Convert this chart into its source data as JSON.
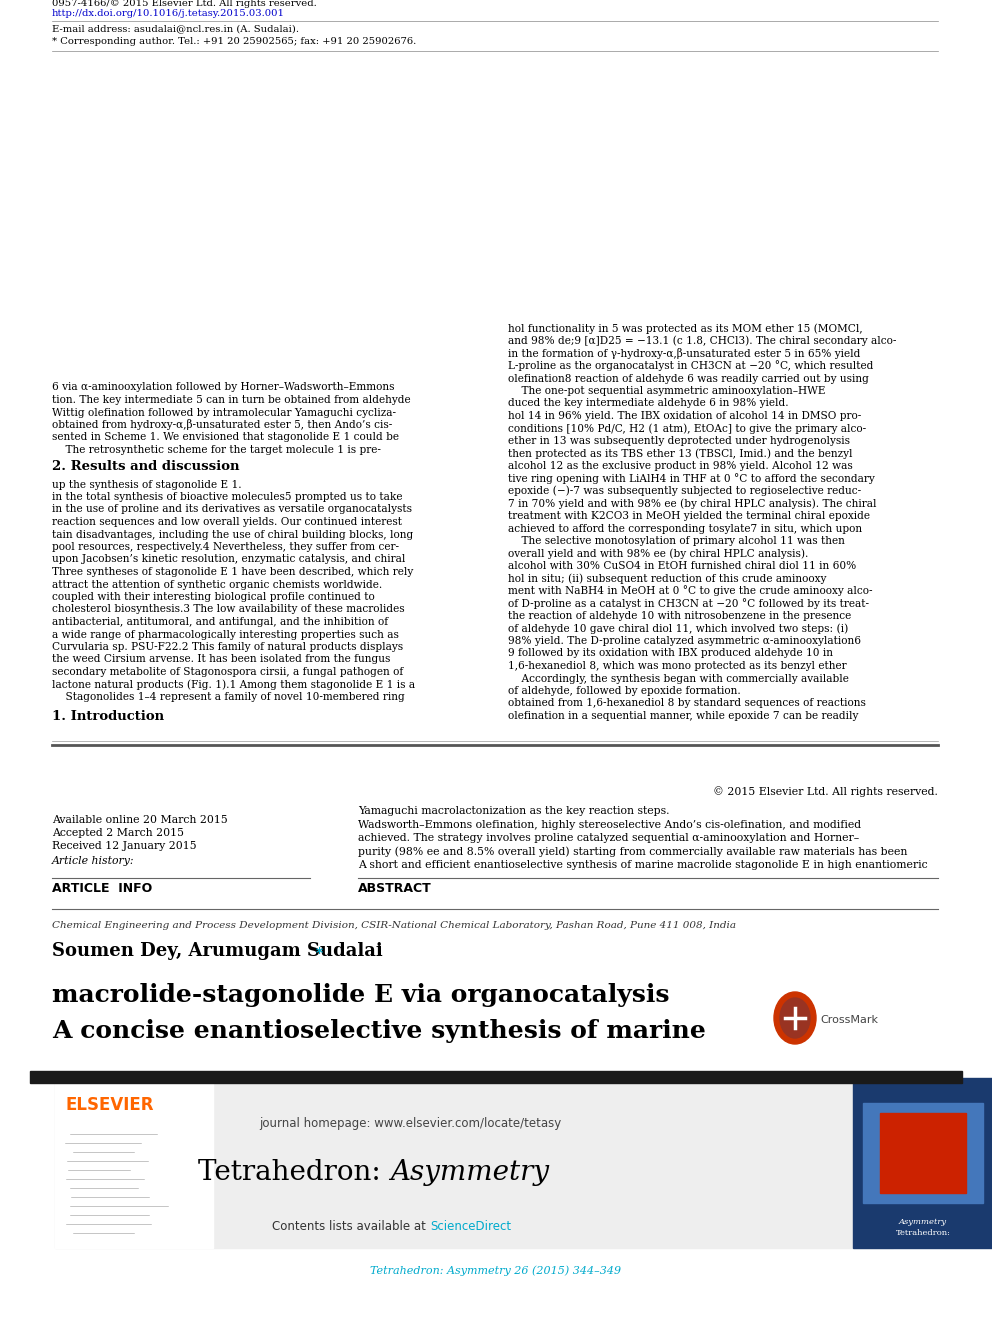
{
  "journal_ref": "Tetrahedron: Asymmetry 26 (2015) 344–349",
  "journal_ref_color": "#00AACC",
  "sciencedirect_color": "#00AACC",
  "journal_homepage": "journal homepage: www.elsevier.com/locate/tetasy",
  "elsevier_color": "#FF6600",
  "elsevier_text": "ELSEVIER",
  "black_bar_color": "#1a1a1a",
  "paper_title_line1": "A concise enantioselective synthesis of marine",
  "paper_title_line2": "macrolide-stagonolide E via organocatalysis",
  "affiliation": "Chemical Engineering and Process Development Division, CSIR-National Chemical Laboratory, Pashan Road, Pune 411 008, India",
  "article_info_header": "ARTICLE  INFO",
  "abstract_header": "ABSTRACT",
  "article_history_label": "Article history:",
  "received": "Received 12 January 2015",
  "accepted": "Accepted 2 March 2015",
  "available": "Available online 20 March 2015",
  "abstract_text": "A short and efficient enantioselective synthesis of marine macrolide stagonolide E in high enantiomeric\npurity (98% ee and 8.5% overall yield) starting from commercially available raw materials has been\nachieved. The strategy involves proline catalyzed sequential α-aminooxylation and Horner–\nWadsworth–Emmons olefination, highly stereoselective Ando’s cis-olefination, and modified\nYamaguchi macrolactonization as the key reaction steps.",
  "copyright_text": "© 2015 Elsevier Ltd. All rights reserved.",
  "section1_title": "1. Introduction",
  "section1_col1": "    Stagonolides 1–4 represent a family of novel 10-membered ring\nlactone natural products (Fig. 1).1 Among them stagonolide E 1 is a\nsecondary metabolite of Stagonospora cirsii, a fungal pathogen of\nthe weed Cirsium arvense. It has been isolated from the fungus\nCurvularia sp. PSU-F22.2 This family of natural products displays\na wide range of pharmacologically interesting properties such as\nantibacterial, antitumoral, and antifungal, and the inhibition of\ncholesterol biosynthesis.3 The low availability of these macrolides\ncoupled with their interesting biological profile continued to\nattract the attention of synthetic organic chemists worldwide.\nThree syntheses of stagonolide E 1 have been described, which rely\nupon Jacobsen’s kinetic resolution, enzymatic catalysis, and chiral\npool resources, respectively.4 Nevertheless, they suffer from cer-\ntain disadvantages, including the use of chiral building blocks, long\nreaction sequences and low overall yields. Our continued interest\nin the use of proline and its derivatives as versatile organocatalysts\nin the total synthesis of bioactive molecules5 prompted us to take\nup the synthesis of stagonolide E 1.",
  "section2_title": "2. Results and discussion",
  "section2_col1": "    The retrosynthetic scheme for the target molecule 1 is pre-\nsented in Scheme 1. We envisioned that stagonolide E 1 could be\nobtained from hydroxy-α,β-unsaturated ester 5, then Ando’s cis-\nWittig olefination followed by intramolecular Yamaguchi cycliza-\ntion. The key intermediate 5 can in turn be obtained from aldehyde\n6 via α-aminooxylation followed by Horner–Wadsworth–Emmons",
  "section1_col2": "olefination in a sequential manner, while epoxide 7 can be readily\nobtained from 1,6-hexanediol 8 by standard sequences of reactions\nof aldehyde, followed by epoxide formation.\n    Accordingly, the synthesis began with commercially available\n1,6-hexanediol 8, which was mono protected as its benzyl ether\n9 followed by its oxidation with IBX produced aldehyde 10 in\n98% yield. The D-proline catalyzed asymmetric α-aminooxylation6\nof aldehyde 10 gave chiral diol 11, which involved two steps: (i)\nthe reaction of aldehyde 10 with nitrosobenzene in the presence\nof D-proline as a catalyst in CH3CN at −20 °C followed by its treat-\nment with NaBH4 in MeOH at 0 °C to give the crude aminooxy alco-\nhol in situ; (ii) subsequent reduction of this crude aminooxy\nalcohol with 30% CuSO4 in EtOH furnished chiral diol 11 in 60%\noverall yield and with 98% ee (by chiral HPLC analysis).\n    The selective monotosylation of primary alcohol 11 was then\nachieved to afford the corresponding tosylate7 in situ, which upon\ntreatment with K2CO3 in MeOH yielded the terminal chiral epoxide\n7 in 70% yield and with 98% ee (by chiral HPLC analysis). The chiral\nepoxide (−)-7 was subsequently subjected to regioselective reduc-\ntive ring opening with LiAlH4 in THF at 0 °C to afford the secondary\nalcohol 12 as the exclusive product in 98% yield. Alcohol 12 was\nthen protected as its TBS ether 13 (TBSCl, Imid.) and the benzyl\nether in 13 was subsequently deprotected under hydrogenolysis\nconditions [10% Pd/C, H2 (1 atm), EtOAc] to give the primary alco-\nhol 14 in 96% yield. The IBX oxidation of alcohol 14 in DMSO pro-\nduced the key intermediate aldehyde 6 in 98% yield.\n    The one-pot sequential asymmetric aminooxylation–HWE\nolefination8 reaction of aldehyde 6 was readily carried out by using\nL-proline as the organocatalyst in CH3CN at −20 °C, which resulted\nin the formation of γ-hydroxy-α,β-unsaturated ester 5 in 65% yield\nand 98% de;9 [α]D25 = −13.1 (c 1.8, CHCl3). The chiral secondary alco-\nhol functionality in 5 was protected as its MOM ether 15 (MOMCl,",
  "footnote_star": "* Corresponding author. Tel.: +91 20 25902565; fax: +91 20 25902676.",
  "footnote_email": "E-mail address: asudalai@ncl.res.in (A. Sudalai).",
  "doi_text": "http://dx.doi.org/10.1016/j.tetasy.2015.03.001",
  "doi_color": "#0000CC",
  "footer_text": "0957-4166/© 2015 Elsevier Ltd. All rights reserved.",
  "bg_color": "#FFFFFF",
  "header_bg_color": "#EEEEEE",
  "text_color": "#000000"
}
